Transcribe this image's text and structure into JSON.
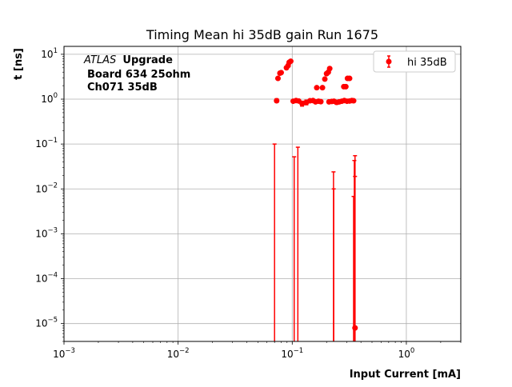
{
  "chart_data": {
    "type": "scatter",
    "title": "Timing Mean hi 35dB gain Run 1675",
    "xlabel": "Input Current [mA]",
    "ylabel": "t [ns]",
    "xscale": "log",
    "yscale": "log",
    "xlim": [
      0.001,
      3
    ],
    "ylim": [
      4e-06,
      15
    ],
    "grid": true,
    "legend_position": "top-right",
    "annotation": {
      "italic": "ATLAS",
      "bold": "Upgrade",
      "line2": "Board 634 25ohm",
      "line3": "Ch071 35dB"
    },
    "x_ticks": [
      {
        "value": 0.001,
        "base": "10",
        "exp": "−3"
      },
      {
        "value": 0.01,
        "base": "10",
        "exp": "−2"
      },
      {
        "value": 0.1,
        "base": "10",
        "exp": "−1"
      },
      {
        "value": 1,
        "base": "10",
        "exp": "0"
      }
    ],
    "y_ticks": [
      {
        "value": 1e-05,
        "base": "10",
        "exp": "−5"
      },
      {
        "value": 0.0001,
        "base": "10",
        "exp": "−4"
      },
      {
        "value": 0.001,
        "base": "10",
        "exp": "−3"
      },
      {
        "value": 0.01,
        "base": "10",
        "exp": "−2"
      },
      {
        "value": 0.1,
        "base": "10",
        "exp": "−1"
      },
      {
        "value": 1,
        "base": "10",
        "exp": "0"
      },
      {
        "value": 10,
        "base": "10",
        "exp": "1"
      }
    ],
    "series": [
      {
        "name": "hi 35dB",
        "color": "#ff0000",
        "points": [
          {
            "x": 0.075,
            "y": 2.9
          },
          {
            "x": 0.078,
            "y": 3.8
          },
          {
            "x": 0.08,
            "y": 3.9
          },
          {
            "x": 0.089,
            "y": 5.0
          },
          {
            "x": 0.092,
            "y": 5.6
          },
          {
            "x": 0.094,
            "y": 6.6
          },
          {
            "x": 0.097,
            "y": 7.0
          },
          {
            "x": 0.164,
            "y": 1.8
          },
          {
            "x": 0.184,
            "y": 1.8
          },
          {
            "x": 0.193,
            "y": 2.8
          },
          {
            "x": 0.2,
            "y": 3.7
          },
          {
            "x": 0.207,
            "y": 4.0
          },
          {
            "x": 0.213,
            "y": 4.8
          },
          {
            "x": 0.283,
            "y": 1.9
          },
          {
            "x": 0.295,
            "y": 1.9
          },
          {
            "x": 0.305,
            "y": 2.9
          },
          {
            "x": 0.318,
            "y": 2.9
          },
          {
            "x": 0.073,
            "y": 0.92,
            "err_lo": 0.07,
            "err_hi": 0.1
          },
          {
            "x": 0.102,
            "y": 0.9
          },
          {
            "x": 0.108,
            "y": 0.93
          },
          {
            "x": 0.114,
            "y": 0.91
          },
          {
            "x": 0.122,
            "y": 0.8,
            "err_lo": 0.1,
            "err_hi": 0.1
          },
          {
            "x": 0.133,
            "y": 0.85,
            "err_lo": 0.1,
            "err_hi": 0.1
          },
          {
            "x": 0.143,
            "y": 0.92
          },
          {
            "x": 0.152,
            "y": 0.93
          },
          {
            "x": 0.16,
            "y": 0.87
          },
          {
            "x": 0.17,
            "y": 0.9
          },
          {
            "x": 0.178,
            "y": 0.88
          },
          {
            "x": 0.21,
            "y": 0.87
          },
          {
            "x": 0.222,
            "y": 0.89
          },
          {
            "x": 0.232,
            "y": 0.9
          },
          {
            "x": 0.245,
            "y": 0.85,
            "err_lo": 0.08,
            "err_hi": 0.08
          },
          {
            "x": 0.258,
            "y": 0.87
          },
          {
            "x": 0.272,
            "y": 0.9
          },
          {
            "x": 0.286,
            "y": 0.93
          },
          {
            "x": 0.302,
            "y": 0.9
          },
          {
            "x": 0.318,
            "y": 0.91
          },
          {
            "x": 0.333,
            "y": 0.93
          },
          {
            "x": 0.345,
            "y": 0.92
          },
          {
            "x": 0.355,
            "y": 8e-06
          }
        ],
        "error_bars": [
          {
            "x": 0.07,
            "top": 0.1
          },
          {
            "x": 0.104,
            "top": 0.052
          },
          {
            "x": 0.112,
            "top": 0.085
          },
          {
            "x": 0.23,
            "top": 0.024
          },
          {
            "x": 0.231,
            "top": 0.01
          },
          {
            "x": 0.345,
            "top": 0.0068
          },
          {
            "x": 0.35,
            "top": 0.043
          },
          {
            "x": 0.355,
            "top": 0.055
          },
          {
            "x": 0.355,
            "top": 0.019
          }
        ]
      }
    ]
  }
}
